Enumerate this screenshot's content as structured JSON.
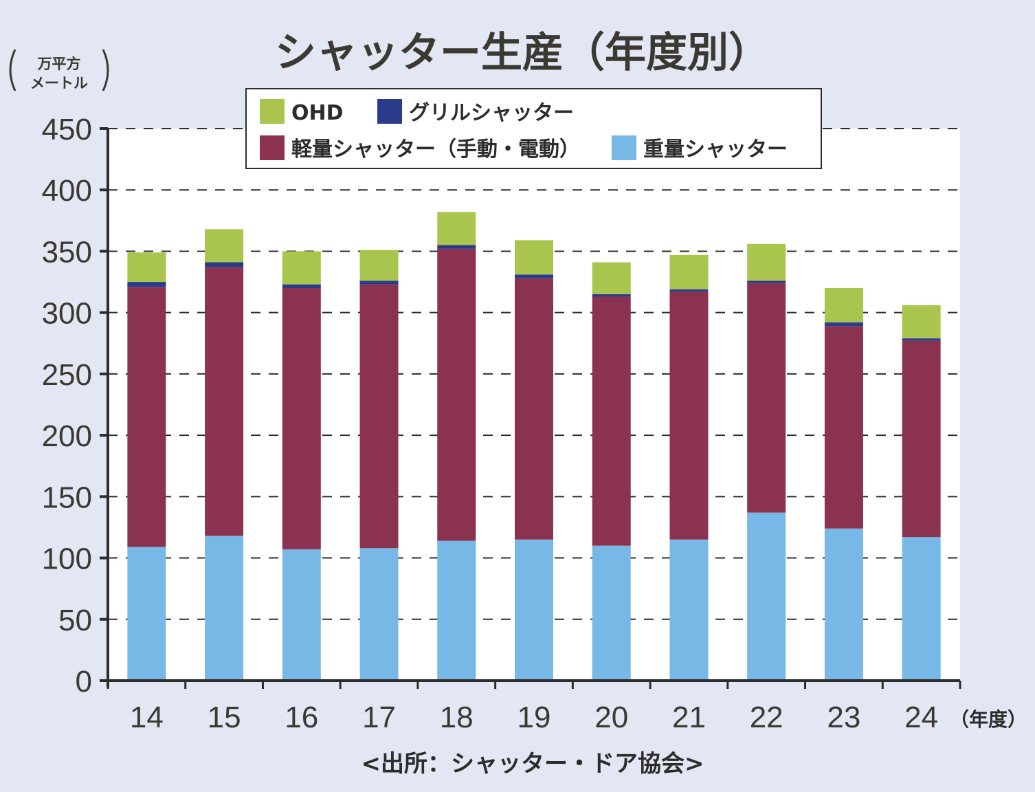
{
  "chart_data": {
    "type": "bar",
    "stacked": true,
    "title": "シャッター生産（年度別）",
    "ylabel_line1": "万平方",
    "ylabel_line2": "メートル",
    "xlabel": "（年度）",
    "source": "<出所：シャッター・ドア協会>",
    "ylim": [
      0,
      450
    ],
    "yticks": [
      0,
      50,
      100,
      150,
      200,
      250,
      300,
      350,
      400,
      450
    ],
    "grid": true,
    "legend_position": "top",
    "categories": [
      "14",
      "15",
      "16",
      "17",
      "18",
      "19",
      "20",
      "21",
      "22",
      "23",
      "24"
    ],
    "series": [
      {
        "name": "重量シャッター",
        "color": "#78b8e6",
        "values": [
          109,
          118,
          107,
          108,
          114,
          115,
          110,
          115,
          137,
          124,
          117
        ]
      },
      {
        "name": "軽量シャッター（手動・電動）",
        "color": "#8b3251",
        "values": [
          212,
          219,
          213,
          215,
          238,
          213,
          203,
          202,
          187,
          165,
          160
        ]
      },
      {
        "name": "グリルシャッター",
        "color": "#2a3b8c",
        "values": [
          4,
          4,
          3,
          3,
          3,
          3,
          2,
          2,
          2,
          3,
          2
        ]
      },
      {
        "name": "OHD",
        "color": "#a9c54d",
        "values": [
          24,
          27,
          27,
          25,
          27,
          28,
          26,
          28,
          30,
          28,
          27
        ]
      }
    ],
    "legend_order": [
      "OHD",
      "グリルシャッター",
      "軽量シャッター（手動・電動）",
      "重量シャッター"
    ]
  }
}
